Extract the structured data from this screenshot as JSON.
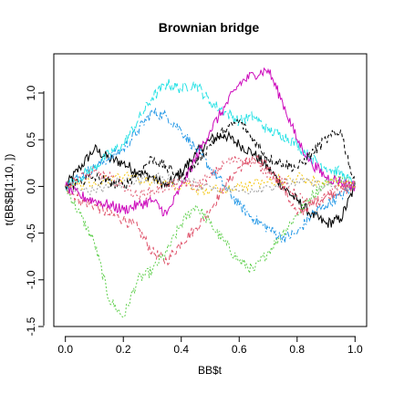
{
  "chart_data": {
    "type": "line",
    "title": "Brownian bridge",
    "xlabel": "BB$t",
    "ylabel": "t(BB$B[1:10, ])",
    "xlim": [
      -0.04,
      1.04
    ],
    "ylim": [
      -1.5,
      1.42
    ],
    "xticks": [
      0.0,
      0.2,
      0.4,
      0.6,
      0.8,
      1.0
    ],
    "xtick_labels": [
      "0.0",
      "0.2",
      "0.4",
      "0.6",
      "0.8",
      "1.0"
    ],
    "yticks": [
      -1.5,
      -1.0,
      -0.5,
      0.0,
      0.5,
      1.0
    ],
    "ytick_labels": [
      "-1.5",
      "-1.0",
      "-0.5",
      "0.0",
      "0.5",
      "1.0"
    ],
    "grid": false,
    "legend": "none",
    "series": [
      {
        "color": "#000000",
        "dash": "none",
        "x": [
          0.0,
          0.05,
          0.1,
          0.15,
          0.2,
          0.25,
          0.3,
          0.35,
          0.4,
          0.45,
          0.5,
          0.55,
          0.6,
          0.65,
          0.7,
          0.75,
          0.8,
          0.85,
          0.9,
          0.95,
          1.0
        ],
        "y": [
          0.0,
          0.2,
          0.4,
          0.3,
          0.25,
          0.15,
          0.1,
          0.0,
          0.15,
          0.35,
          0.5,
          0.55,
          0.45,
          0.35,
          0.2,
          0.0,
          -0.15,
          -0.3,
          -0.4,
          -0.35,
          0.0
        ]
      },
      {
        "color": "#DF536B",
        "dash": "5 3",
        "x": [
          0.0,
          0.05,
          0.1,
          0.15,
          0.2,
          0.25,
          0.3,
          0.35,
          0.4,
          0.45,
          0.5,
          0.55,
          0.6,
          0.65,
          0.7,
          0.75,
          0.8,
          0.85,
          0.9,
          0.95,
          1.0
        ],
        "y": [
          0.0,
          -0.15,
          -0.2,
          -0.3,
          -0.35,
          -0.45,
          -0.7,
          -0.8,
          -0.6,
          -0.45,
          -0.25,
          0.0,
          0.2,
          0.3,
          0.2,
          0.0,
          -0.3,
          -0.2,
          -0.1,
          -0.05,
          0.0
        ]
      },
      {
        "color": "#61D04F",
        "dash": "2 2",
        "x": [
          0.0,
          0.05,
          0.1,
          0.15,
          0.2,
          0.25,
          0.3,
          0.35,
          0.4,
          0.45,
          0.5,
          0.55,
          0.6,
          0.65,
          0.7,
          0.75,
          0.8,
          0.85,
          0.9,
          0.95,
          1.0
        ],
        "y": [
          0.0,
          -0.3,
          -0.6,
          -1.2,
          -1.4,
          -1.0,
          -0.9,
          -0.7,
          -0.4,
          -0.2,
          -0.4,
          -0.6,
          -0.8,
          -0.9,
          -0.7,
          -0.5,
          -0.3,
          -0.1,
          0.05,
          0.1,
          0.0
        ]
      },
      {
        "color": "#2297E6",
        "dash": "6 2 2 2",
        "x": [
          0.0,
          0.05,
          0.1,
          0.15,
          0.2,
          0.25,
          0.3,
          0.35,
          0.4,
          0.45,
          0.5,
          0.55,
          0.6,
          0.65,
          0.7,
          0.75,
          0.8,
          0.85,
          0.9,
          0.95,
          1.0
        ],
        "y": [
          0.0,
          0.1,
          0.2,
          0.3,
          0.4,
          0.6,
          0.8,
          0.75,
          0.6,
          0.4,
          0.2,
          0.0,
          -0.2,
          -0.35,
          -0.45,
          -0.55,
          -0.5,
          -0.3,
          -0.2,
          -0.1,
          0.0
        ]
      },
      {
        "color": "#28E2E5",
        "dash": "10 3",
        "x": [
          0.0,
          0.05,
          0.1,
          0.15,
          0.2,
          0.25,
          0.3,
          0.35,
          0.4,
          0.45,
          0.5,
          0.55,
          0.6,
          0.65,
          0.7,
          0.75,
          0.8,
          0.85,
          0.9,
          0.95,
          1.0
        ],
        "y": [
          0.0,
          0.1,
          0.2,
          0.35,
          0.45,
          0.7,
          0.95,
          1.1,
          1.05,
          1.1,
          0.9,
          0.8,
          0.7,
          0.75,
          0.6,
          0.55,
          0.45,
          0.3,
          0.2,
          0.15,
          0.0
        ]
      },
      {
        "color": "#CD0BBC",
        "dash": "none",
        "x": [
          0.0,
          0.05,
          0.1,
          0.15,
          0.2,
          0.25,
          0.3,
          0.35,
          0.4,
          0.45,
          0.5,
          0.55,
          0.6,
          0.65,
          0.7,
          0.75,
          0.8,
          0.85,
          0.9,
          0.95,
          1.0
        ],
        "y": [
          0.0,
          -0.1,
          -0.15,
          -0.2,
          -0.25,
          -0.2,
          -0.15,
          -0.3,
          0.0,
          0.3,
          0.6,
          0.85,
          1.1,
          1.2,
          1.25,
          0.9,
          0.5,
          0.25,
          0.1,
          0.05,
          0.0
        ]
      },
      {
        "color": "#F5C710",
        "dash": "2 2",
        "x": [
          0.0,
          0.1,
          0.2,
          0.3,
          0.4,
          0.5,
          0.6,
          0.7,
          0.8,
          0.9,
          1.0
        ],
        "y": [
          0.0,
          0.05,
          0.1,
          0.05,
          0.0,
          -0.05,
          0.0,
          0.05,
          0.1,
          0.05,
          0.0
        ]
      },
      {
        "color": "#9E9E9E",
        "dash": "2 2",
        "x": [
          0.0,
          0.1,
          0.2,
          0.3,
          0.4,
          0.5,
          0.6,
          0.7,
          0.8,
          0.9,
          1.0
        ],
        "y": [
          0.0,
          -0.05,
          0.05,
          0.1,
          0.05,
          0.0,
          -0.05,
          0.0,
          0.05,
          0.0,
          0.0
        ]
      },
      {
        "color": "#000000",
        "dash": "4 3",
        "x": [
          0.0,
          0.05,
          0.1,
          0.15,
          0.2,
          0.25,
          0.3,
          0.35,
          0.4,
          0.45,
          0.5,
          0.55,
          0.6,
          0.65,
          0.7,
          0.75,
          0.8,
          0.85,
          0.9,
          0.95,
          1.0
        ],
        "y": [
          0.0,
          0.05,
          0.1,
          0.05,
          0.0,
          0.15,
          0.3,
          0.2,
          0.1,
          0.25,
          0.45,
          0.6,
          0.7,
          0.5,
          0.3,
          0.25,
          0.2,
          0.35,
          0.5,
          0.6,
          0.0
        ]
      },
      {
        "color": "#DF536B",
        "dash": "2 3",
        "x": [
          0.0,
          0.05,
          0.1,
          0.15,
          0.2,
          0.25,
          0.3,
          0.35,
          0.4,
          0.45,
          0.5,
          0.55,
          0.6,
          0.65,
          0.7,
          0.75,
          0.8,
          0.85,
          0.9,
          0.95,
          1.0
        ],
        "y": [
          0.0,
          0.1,
          0.15,
          0.1,
          0.0,
          -0.1,
          -0.05,
          0.0,
          0.05,
          0.0,
          0.1,
          0.25,
          0.3,
          0.25,
          0.15,
          0.05,
          -0.1,
          -0.2,
          -0.1,
          0.0,
          0.0
        ]
      }
    ]
  }
}
